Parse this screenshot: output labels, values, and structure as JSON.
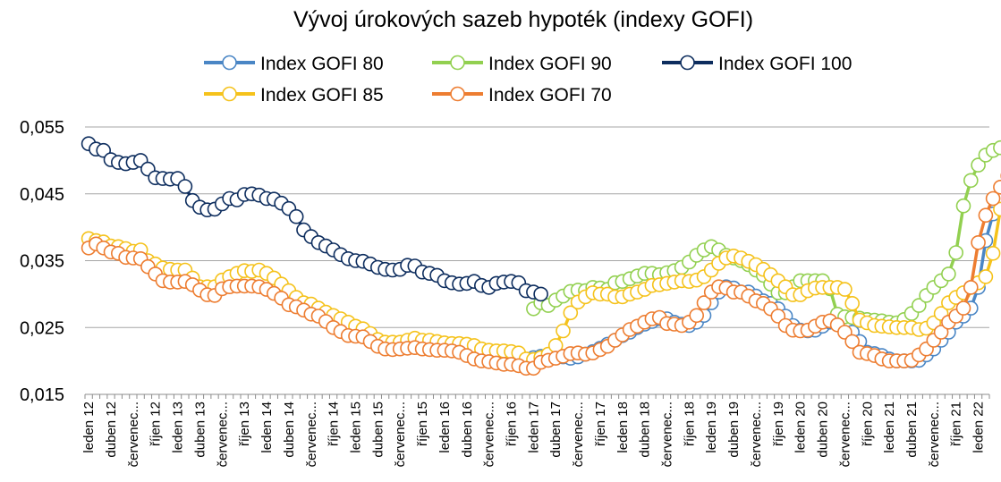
{
  "chart_data": {
    "type": "line",
    "title": "Vývoj úrokových sazeb hypoték (indexy GOFI)",
    "xlabel": "",
    "ylabel": "",
    "ylim": [
      0.015,
      0.055
    ],
    "yticks": [
      "0,015",
      "0,025",
      "0,035",
      "0,045",
      "0,055"
    ],
    "grid": "horizontal",
    "legend": "top",
    "x_start": "ledna 2012",
    "x_end": "února 2022",
    "x_frequency": "monthly",
    "tick_labels": [
      "leden 12",
      "duben 12",
      "červenec...",
      "říjen 12",
      "leden 13",
      "duben 13",
      "červenec...",
      "říjen 13",
      "leden 14",
      "duben 14",
      "červenec...",
      "říjen 14",
      "leden 15",
      "duben 15",
      "červenec...",
      "říjen 15",
      "leden 16",
      "duben 16",
      "červenec...",
      "říjen 16",
      "leden 17",
      "duben 17",
      "červenec...",
      "říjen 17",
      "leden 18",
      "duben 18",
      "červenec...",
      "říjen 18",
      "leden 19",
      "duben 19",
      "červenec...",
      "říjen 19",
      "leden 20",
      "duben 20",
      "červenec...",
      "říjen 20",
      "leden 21",
      "duben 21",
      "červenec...",
      "říjen 21",
      "leden 22"
    ],
    "series": [
      {
        "name": "Index GOFI 80",
        "color": "#4a86c5",
        "start_index": 60,
        "values": [
          0.0205,
          0.0207,
          0.0208,
          0.0207,
          0.0206,
          0.0204,
          0.0206,
          0.021,
          0.0214,
          0.0219,
          0.0225,
          0.0231,
          0.0238,
          0.0243,
          0.025,
          0.0255,
          0.0259,
          0.0263,
          0.0263,
          0.0258,
          0.0255,
          0.0253,
          0.0258,
          0.0268,
          0.0287,
          0.0303,
          0.0311,
          0.0309,
          0.0303,
          0.0303,
          0.0297,
          0.029,
          0.0286,
          0.0278,
          0.0267,
          0.0253,
          0.0246,
          0.0245,
          0.0246,
          0.0252,
          0.0258,
          0.026,
          0.0254,
          0.0243,
          0.0229,
          0.0213,
          0.0211,
          0.0208,
          0.0203,
          0.02,
          0.02,
          0.02,
          0.0201,
          0.0209,
          0.0218,
          0.0231,
          0.0243,
          0.0258,
          0.0267,
          0.0279,
          0.031,
          0.038,
          0.042,
          0.0442,
          0.0461,
          0.048
        ]
      },
      {
        "name": "Index GOFI 90",
        "color": "#92d050",
        "start_index": 60,
        "values": [
          0.0278,
          0.0287,
          0.0283,
          0.0291,
          0.0297,
          0.0304,
          0.0306,
          0.0305,
          0.031,
          0.0309,
          0.0307,
          0.0317,
          0.0319,
          0.0323,
          0.0327,
          0.0331,
          0.0331,
          0.0329,
          0.0332,
          0.0335,
          0.034,
          0.0348,
          0.0358,
          0.0366,
          0.0371,
          0.0366,
          0.0358,
          0.0354,
          0.035,
          0.0344,
          0.0336,
          0.0328,
          0.0315,
          0.0302,
          0.0302,
          0.0311,
          0.032,
          0.032,
          0.032,
          0.032,
          0.0308,
          0.027,
          0.0266,
          0.0265,
          0.0264,
          0.0262,
          0.0261,
          0.026,
          0.0258,
          0.0257,
          0.0262,
          0.0271,
          0.0283,
          0.0298,
          0.031,
          0.032,
          0.033,
          0.0362,
          0.0432,
          0.047,
          0.0493,
          0.0508,
          0.0515,
          0.0519
        ]
      },
      {
        "name": "Index GOFI 100",
        "color": "#0d2d5e",
        "start_index": 0,
        "values": [
          0.0525,
          0.0517,
          0.0515,
          0.0501,
          0.0497,
          0.0495,
          0.0497,
          0.05,
          0.0487,
          0.0474,
          0.0473,
          0.0472,
          0.0473,
          0.0461,
          0.044,
          0.043,
          0.0426,
          0.0427,
          0.0435,
          0.0443,
          0.0441,
          0.0449,
          0.045,
          0.0448,
          0.0443,
          0.0442,
          0.0436,
          0.0428,
          0.0416,
          0.0396,
          0.0386,
          0.0377,
          0.0372,
          0.0366,
          0.0359,
          0.0353,
          0.035,
          0.0349,
          0.0345,
          0.034,
          0.0337,
          0.0336,
          0.0337,
          0.0343,
          0.0342,
          0.0333,
          0.0331,
          0.0328,
          0.032,
          0.0317,
          0.0315,
          0.0316,
          0.0319,
          0.0313,
          0.031,
          0.0316,
          0.0318,
          0.0319,
          0.0317,
          0.0305,
          0.0303,
          0.03
        ]
      },
      {
        "name": "Index GOFI 85",
        "color": "#f5c21b",
        "start_index": 0,
        "values": [
          0.0383,
          0.038,
          0.0378,
          0.0372,
          0.0371,
          0.0368,
          0.0364,
          0.0366,
          0.035,
          0.0345,
          0.0339,
          0.0337,
          0.0336,
          0.0336,
          0.0324,
          0.0311,
          0.0311,
          0.0311,
          0.0321,
          0.0326,
          0.0331,
          0.0335,
          0.0334,
          0.0336,
          0.0331,
          0.0324,
          0.0315,
          0.0305,
          0.0295,
          0.0287,
          0.0285,
          0.0279,
          0.0273,
          0.0268,
          0.0263,
          0.0258,
          0.0252,
          0.0248,
          0.0241,
          0.0232,
          0.0228,
          0.0228,
          0.0228,
          0.0231,
          0.0234,
          0.0231,
          0.0231,
          0.0229,
          0.0227,
          0.0226,
          0.0226,
          0.0225,
          0.0223,
          0.0218,
          0.0216,
          0.0215,
          0.0215,
          0.0214,
          0.0212,
          0.0203,
          0.0202,
          0.0205,
          0.021,
          0.0223,
          0.0245,
          0.0272,
          0.0288,
          0.0296,
          0.0302,
          0.03,
          0.03,
          0.0296,
          0.0296,
          0.03,
          0.0303,
          0.0307,
          0.0313,
          0.0314,
          0.0316,
          0.0318,
          0.032,
          0.0319,
          0.0321,
          0.0326,
          0.0336,
          0.0346,
          0.0354,
          0.0357,
          0.0354,
          0.0349,
          0.0344,
          0.0337,
          0.0329,
          0.032,
          0.0311,
          0.0299,
          0.0299,
          0.0305,
          0.0309,
          0.031,
          0.031,
          0.031,
          0.0307,
          0.0286,
          0.0261,
          0.0257,
          0.0253,
          0.0252,
          0.0251,
          0.025,
          0.025,
          0.025,
          0.0247,
          0.0249,
          0.0257,
          0.0271,
          0.0287,
          0.0295,
          0.0302,
          0.031,
          0.0317,
          0.0326,
          0.0361,
          0.0427,
          0.0464,
          0.0483,
          0.0499,
          0.0505,
          0.0511
        ]
      },
      {
        "name": "Index GOFI 70",
        "color": "#ed7d31",
        "start_index": 0,
        "values": [
          0.0369,
          0.0375,
          0.0369,
          0.0363,
          0.0361,
          0.0355,
          0.0354,
          0.0353,
          0.0341,
          0.033,
          0.032,
          0.0318,
          0.0318,
          0.0319,
          0.0314,
          0.0306,
          0.0299,
          0.0298,
          0.0308,
          0.0311,
          0.0312,
          0.0312,
          0.0312,
          0.0311,
          0.0307,
          0.0301,
          0.0294,
          0.0284,
          0.0281,
          0.0276,
          0.027,
          0.0267,
          0.0259,
          0.025,
          0.0244,
          0.0238,
          0.0237,
          0.0236,
          0.0229,
          0.0222,
          0.0218,
          0.0217,
          0.0218,
          0.0219,
          0.022,
          0.0218,
          0.0217,
          0.0216,
          0.0216,
          0.0215,
          0.0213,
          0.0208,
          0.0203,
          0.02,
          0.0199,
          0.0197,
          0.0195,
          0.0195,
          0.0193,
          0.0189,
          0.0189,
          0.0198,
          0.0201,
          0.0204,
          0.0207,
          0.0211,
          0.0212,
          0.021,
          0.0212,
          0.0217,
          0.0222,
          0.0231,
          0.0239,
          0.0247,
          0.0252,
          0.0258,
          0.0263,
          0.0265,
          0.0256,
          0.0255,
          0.0253,
          0.0258,
          0.0268,
          0.0287,
          0.0303,
          0.0311,
          0.0309,
          0.0303,
          0.0303,
          0.0297,
          0.029,
          0.0286,
          0.0278,
          0.0267,
          0.0253,
          0.0246,
          0.0245,
          0.0246,
          0.0252,
          0.0258,
          0.026,
          0.0254,
          0.0243,
          0.0229,
          0.0213,
          0.0211,
          0.0208,
          0.0203,
          0.02,
          0.02,
          0.02,
          0.0201,
          0.0209,
          0.0218,
          0.0231,
          0.0243,
          0.0258,
          0.0267,
          0.0279,
          0.031,
          0.0377,
          0.0418,
          0.0443,
          0.046,
          0.0477
        ]
      }
    ]
  }
}
